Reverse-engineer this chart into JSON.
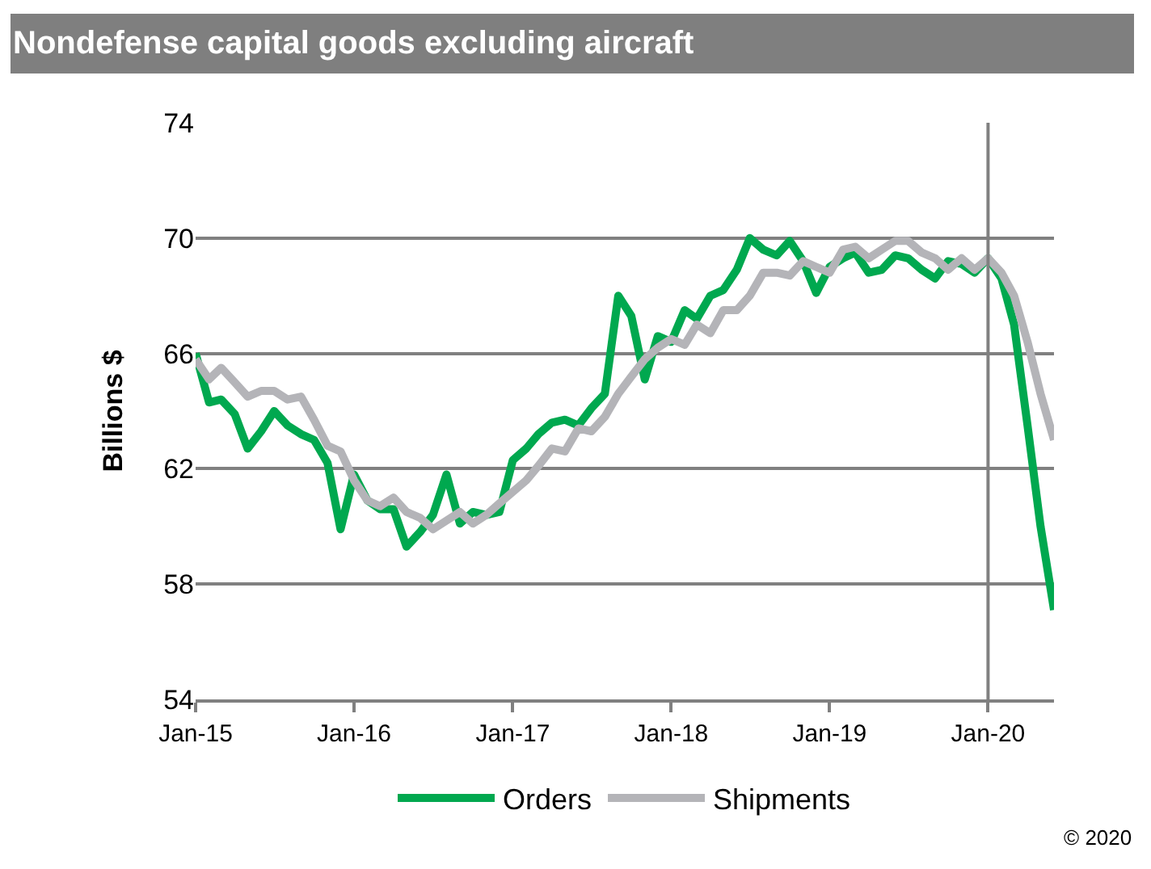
{
  "chart_data": {
    "type": "line",
    "title": "Nondefense capital goods excluding aircraft",
    "ylabel": "Billions $",
    "x": [
      "2015-01",
      "2015-02",
      "2015-03",
      "2015-04",
      "2015-05",
      "2015-06",
      "2015-07",
      "2015-08",
      "2015-09",
      "2015-10",
      "2015-11",
      "2015-12",
      "2016-01",
      "2016-02",
      "2016-03",
      "2016-04",
      "2016-05",
      "2016-06",
      "2016-07",
      "2016-08",
      "2016-09",
      "2016-10",
      "2016-11",
      "2016-12",
      "2017-01",
      "2017-02",
      "2017-03",
      "2017-04",
      "2017-05",
      "2017-06",
      "2017-07",
      "2017-08",
      "2017-09",
      "2017-10",
      "2017-11",
      "2017-12",
      "2018-01",
      "2018-02",
      "2018-03",
      "2018-04",
      "2018-05",
      "2018-06",
      "2018-07",
      "2018-08",
      "2018-09",
      "2018-10",
      "2018-11",
      "2018-12",
      "2019-01",
      "2019-02",
      "2019-03",
      "2019-04",
      "2019-05",
      "2019-06",
      "2019-07",
      "2019-08",
      "2019-09",
      "2019-10",
      "2019-11",
      "2019-12",
      "2020-01",
      "2020-02",
      "2020-03",
      "2020-04",
      "2020-05",
      "2020-06"
    ],
    "series": [
      {
        "name": "Orders",
        "color": "#00a84f",
        "values": [
          66.0,
          64.3,
          64.4,
          63.9,
          62.7,
          63.3,
          64.0,
          63.5,
          63.2,
          63.0,
          62.2,
          59.9,
          61.8,
          60.9,
          60.6,
          60.6,
          59.3,
          59.8,
          60.4,
          61.8,
          60.1,
          60.5,
          60.4,
          60.5,
          62.3,
          62.7,
          63.2,
          63.6,
          63.7,
          63.5,
          64.1,
          64.6,
          68.0,
          67.3,
          65.1,
          66.6,
          66.4,
          67.5,
          67.2,
          68.0,
          68.2,
          68.9,
          70.0,
          69.6,
          69.4,
          69.9,
          69.2,
          68.1,
          69.0,
          69.3,
          69.5,
          68.8,
          68.9,
          69.4,
          69.3,
          68.9,
          68.6,
          69.2,
          69.1,
          68.8,
          69.3,
          68.6,
          67.0,
          63.5,
          60.0,
          57.1
        ]
      },
      {
        "name": "Shipments",
        "color": "#b4b4b8",
        "values": [
          65.8,
          65.1,
          65.5,
          65.0,
          64.5,
          64.7,
          64.7,
          64.4,
          64.5,
          63.7,
          62.8,
          62.6,
          61.6,
          60.9,
          60.7,
          61.0,
          60.5,
          60.3,
          59.9,
          60.2,
          60.5,
          60.1,
          60.4,
          60.8,
          61.2,
          61.6,
          62.1,
          62.7,
          62.6,
          63.4,
          63.3,
          63.8,
          64.6,
          65.2,
          65.8,
          66.2,
          66.5,
          66.3,
          67.0,
          66.7,
          67.5,
          67.5,
          68.0,
          68.8,
          68.8,
          68.7,
          69.2,
          69.0,
          68.8,
          69.6,
          69.7,
          69.3,
          69.6,
          69.9,
          69.9,
          69.5,
          69.3,
          68.9,
          69.3,
          68.9,
          69.3,
          68.8,
          68.0,
          66.4,
          64.6,
          63.0
        ]
      }
    ],
    "xlim": [
      "2015-01",
      "2020-06"
    ],
    "xticks": [
      {
        "value": "2015-01",
        "label": "Jan-15"
      },
      {
        "value": "2016-01",
        "label": "Jan-16"
      },
      {
        "value": "2017-01",
        "label": "Jan-17"
      },
      {
        "value": "2018-01",
        "label": "Jan-18"
      },
      {
        "value": "2019-01",
        "label": "Jan-19"
      },
      {
        "value": "2020-01",
        "label": "Jan-20"
      }
    ],
    "ylim": [
      54,
      74
    ],
    "yticks": [
      54,
      58,
      62,
      66,
      70,
      74
    ],
    "ref_lines": [
      {
        "axis": "x",
        "value": "2020-01",
        "color": "#808080"
      }
    ],
    "grid": "y",
    "legend": "bottom",
    "marker": "none",
    "line_style": "solid",
    "annotations": [
      "© 2020"
    ]
  }
}
